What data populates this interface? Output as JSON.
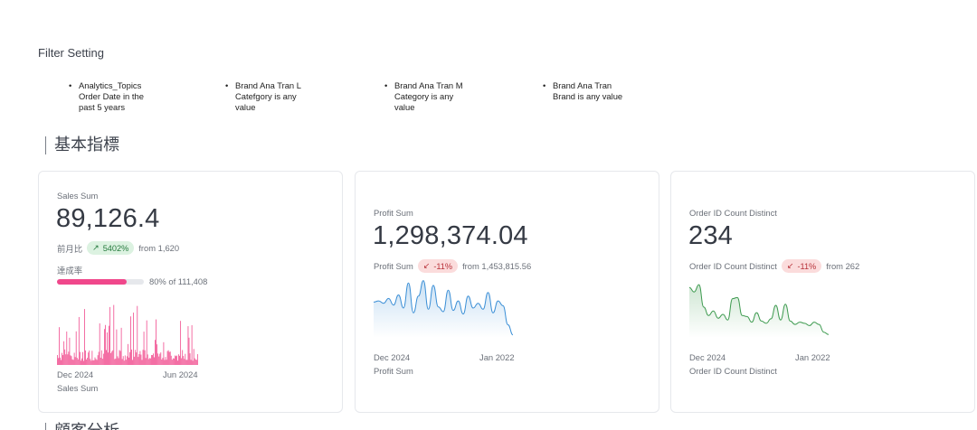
{
  "filter_title": "Filter Setting",
  "filters": [
    {
      "text": "Analytics_Topics\nOrder Date in the\npast 5 years"
    },
    {
      "text": "Brand Ana Tran L\nCatefgory is any\nvalue"
    },
    {
      "text": "Brand Ana Tran M\nCategory is any\nvalue"
    },
    {
      "text": "Brand Ana Tran\nBrand is any value"
    }
  ],
  "bullet": "•",
  "section_title": "基本指標",
  "section_title_2": "顧客分析",
  "cards": {
    "sales": {
      "label": "Sales Sum",
      "value": "89,126.4",
      "compare_prefix": "前月比",
      "badge_arrow": "↗",
      "badge": "5402%",
      "compare_from": "from 1,620",
      "progress_label": "達成率",
      "progress_fraction": 0.8,
      "progress_text": "80% of 111,408",
      "x_start": "Dec 2024",
      "x_end": "Jun 2024",
      "x_title": "Sales Sum",
      "color": "#f0478b"
    },
    "profit": {
      "label": "Profit Sum",
      "value": "1,298,374.04",
      "compare_prefix": "Profit Sum",
      "badge_arrow": "↙",
      "badge": "-11%",
      "compare_from": "from 1,453,815.56",
      "x_start": "Dec 2024",
      "x_end": "Jan 2022",
      "x_title": "Profit Sum",
      "color": "#3b8fd6"
    },
    "orders": {
      "label": "Order ID Count Distinct",
      "value": "234",
      "compare_prefix": "Order ID Count Distinct",
      "badge_arrow": "↙",
      "badge": "-11%",
      "compare_from": "from 262",
      "x_start": "Dec 2024",
      "x_end": "Jan 2022",
      "x_title": "Order ID Count Distinct",
      "color": "#3d9a4f"
    }
  }
}
